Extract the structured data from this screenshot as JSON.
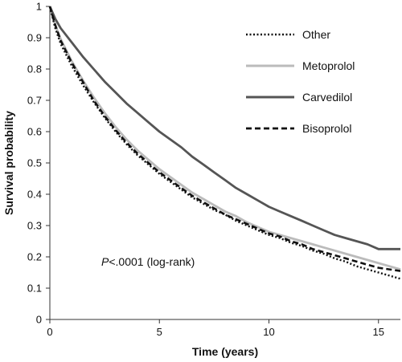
{
  "chart_data": {
    "type": "line",
    "title": "",
    "xlabel": "Time (years)",
    "ylabel": "Survival probability",
    "xlim": [
      0,
      16
    ],
    "ylim": [
      0,
      1
    ],
    "x_ticks": [
      0,
      5,
      10,
      15
    ],
    "y_ticks": [
      0,
      0.1,
      0.2,
      0.3,
      0.4,
      0.5,
      0.6,
      0.7,
      0.8,
      0.9,
      1
    ],
    "x_tick_labels": [
      "0",
      "5",
      "10",
      "15"
    ],
    "y_tick_labels": [
      "0",
      "0.1",
      "0.2",
      "0.3",
      "0.4",
      "0.5",
      "0.6",
      "0.7",
      "0.8",
      "0.9",
      "1"
    ],
    "grid": false,
    "legend_position": "top-right",
    "annotation": {
      "italic_part": "P",
      "rest": "<.0001 (log-rank)"
    },
    "series": [
      {
        "name": "Other",
        "style": "dotted",
        "color": "#111111",
        "x": [
          0,
          0.25,
          0.5,
          1,
          1.5,
          2,
          2.5,
          3,
          3.5,
          4,
          4.5,
          5,
          5.5,
          6,
          6.5,
          7,
          7.5,
          8,
          8.5,
          9,
          9.5,
          10,
          10.5,
          11,
          11.5,
          12,
          12.5,
          13,
          13.5,
          14,
          14.5,
          15,
          15.5,
          16
        ],
        "y": [
          1.0,
          0.93,
          0.88,
          0.81,
          0.75,
          0.695,
          0.645,
          0.6,
          0.56,
          0.525,
          0.495,
          0.465,
          0.44,
          0.415,
          0.39,
          0.37,
          0.35,
          0.335,
          0.315,
          0.3,
          0.285,
          0.27,
          0.26,
          0.245,
          0.235,
          0.22,
          0.21,
          0.195,
          0.185,
          0.17,
          0.16,
          0.15,
          0.14,
          0.13
        ]
      },
      {
        "name": "Metoprolol",
        "style": "solid",
        "color": "#bbbbbb",
        "x": [
          0,
          0.25,
          0.5,
          1,
          1.5,
          2,
          2.5,
          3,
          3.5,
          4,
          4.5,
          5,
          5.5,
          6,
          6.5,
          7,
          7.5,
          8,
          8.5,
          9,
          9.5,
          10,
          10.5,
          11,
          11.5,
          12,
          12.5,
          13,
          13.5,
          14,
          14.5,
          15,
          15.5,
          16
        ],
        "y": [
          1.0,
          0.94,
          0.895,
          0.825,
          0.765,
          0.71,
          0.66,
          0.615,
          0.575,
          0.54,
          0.51,
          0.48,
          0.455,
          0.43,
          0.405,
          0.385,
          0.365,
          0.345,
          0.33,
          0.31,
          0.295,
          0.28,
          0.27,
          0.26,
          0.25,
          0.24,
          0.23,
          0.22,
          0.21,
          0.2,
          0.19,
          0.18,
          0.17,
          0.16
        ]
      },
      {
        "name": "Carvedilol",
        "style": "solid",
        "color": "#555555",
        "x": [
          0,
          0.25,
          0.5,
          1,
          1.5,
          2,
          2.5,
          3,
          3.5,
          4,
          4.5,
          5,
          5.5,
          6,
          6.5,
          7,
          7.5,
          8,
          8.5,
          9,
          9.5,
          10,
          10.5,
          11,
          11.5,
          12,
          12.5,
          13,
          13.5,
          14,
          14.5,
          15,
          15.5,
          16
        ],
        "y": [
          1.0,
          0.96,
          0.93,
          0.885,
          0.84,
          0.8,
          0.76,
          0.725,
          0.69,
          0.66,
          0.63,
          0.6,
          0.575,
          0.55,
          0.52,
          0.495,
          0.47,
          0.445,
          0.42,
          0.4,
          0.38,
          0.36,
          0.345,
          0.33,
          0.315,
          0.3,
          0.285,
          0.27,
          0.26,
          0.25,
          0.24,
          0.225,
          0.225,
          0.225
        ]
      },
      {
        "name": "Bisoprolol",
        "style": "dashed",
        "color": "#111111",
        "x": [
          0,
          0.25,
          0.5,
          1,
          1.5,
          2,
          2.5,
          3,
          3.5,
          4,
          4.5,
          5,
          5.5,
          6,
          6.5,
          7,
          7.5,
          8,
          8.5,
          9,
          9.5,
          10,
          10.5,
          11,
          11.5,
          12,
          12.5,
          13,
          13.5,
          14,
          14.5,
          15,
          15.5,
          16
        ],
        "y": [
          1.0,
          0.94,
          0.89,
          0.82,
          0.76,
          0.7,
          0.65,
          0.605,
          0.565,
          0.53,
          0.5,
          0.47,
          0.445,
          0.42,
          0.395,
          0.375,
          0.355,
          0.335,
          0.32,
          0.305,
          0.29,
          0.275,
          0.265,
          0.25,
          0.24,
          0.225,
          0.215,
          0.205,
          0.195,
          0.185,
          0.175,
          0.165,
          0.16,
          0.155
        ]
      }
    ]
  }
}
